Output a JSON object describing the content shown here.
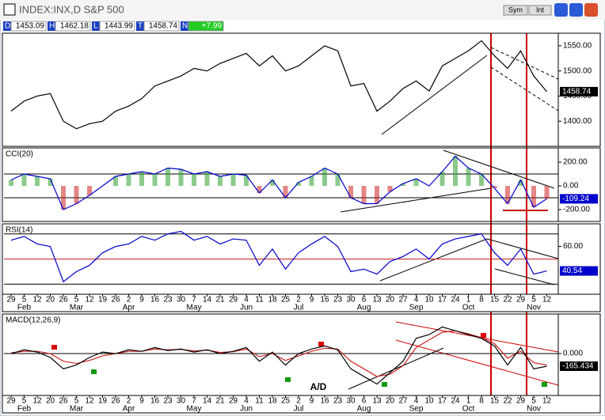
{
  "window": {
    "title": "INDEX:INX,D S&P 500",
    "buttons": [
      "Sym",
      "Int"
    ],
    "fields": [
      {
        "label": "D",
        "value": "1453.09"
      },
      {
        "label": "H",
        "value": "1462.18"
      },
      {
        "label": "L",
        "value": "1443.99"
      },
      {
        "label": "T",
        "value": "1458.74"
      },
      {
        "label": "N",
        "value": "+7.99"
      }
    ]
  },
  "chart_data": [
    {
      "type": "line",
      "ylim": [
        1350,
        1575
      ],
      "last_color": "#000000",
      "yticks": [
        {
          "value": 1550,
          "label": "1550.00"
        },
        {
          "value": 1500,
          "label": "1500.00"
        },
        {
          "value": 1450,
          "label": "1450.00"
        },
        {
          "value": 1400,
          "label": "1400.00"
        }
      ],
      "series": [
        {
          "name": "S&P 500",
          "color": "#000000",
          "values": [
            1420,
            1440,
            1450,
            1455,
            1400,
            1385,
            1395,
            1400,
            1420,
            1430,
            1445,
            1470,
            1480,
            1490,
            1505,
            1500,
            1515,
            1525,
            1535,
            1510,
            1530,
            1500,
            1510,
            1530,
            1550,
            1540,
            1470,
            1475,
            1420,
            1440,
            1465,
            1480,
            1460,
            1510,
            1525,
            1540,
            1560,
            1530,
            1505,
            1540,
            1490,
            1458.74
          ]
        }
      ]
    },
    {
      "type": "bar_line",
      "title": "CCI(20)",
      "ylim": [
        -300,
        320
      ],
      "last_color": "#0000cc",
      "yticks": [
        {
          "value": 200,
          "label": "200.00"
        },
        {
          "value": 0,
          "label": "0.00"
        },
        {
          "value": -200,
          "label": "-200.00"
        }
      ],
      "hlines": [
        100,
        -100
      ],
      "hline_colors": [
        "#000000",
        "#000000"
      ],
      "up_color": "#2e9e2e",
      "down_color": "#cc2222",
      "series": [
        {
          "name": "CCI",
          "color": "#0000cc",
          "values": [
            50,
            100,
            80,
            60,
            -200,
            -150,
            -80,
            0,
            80,
            100,
            120,
            100,
            150,
            140,
            100,
            120,
            80,
            100,
            90,
            -60,
            50,
            -100,
            30,
            80,
            150,
            100,
            -100,
            -150,
            -150,
            -50,
            20,
            60,
            0,
            120,
            250,
            150,
            100,
            -20,
            -150,
            50,
            -180,
            -109.24
          ]
        }
      ]
    },
    {
      "type": "line",
      "title": "RSI(14)",
      "ylim": [
        22,
        78
      ],
      "last_color": "#0000cc",
      "yticks": [
        {
          "value": 60,
          "label": "60.00"
        }
      ],
      "hlines": [
        70,
        50,
        30
      ],
      "hline_colors": [
        "#000000",
        "#cc2222",
        "#000000"
      ],
      "categories": [
        "29",
        "5",
        "12",
        "20",
        "26",
        "5",
        "12",
        "19",
        "26",
        "2",
        "9",
        "16",
        "23",
        "30",
        "7",
        "14",
        "21",
        "29",
        "4",
        "11",
        "18",
        "25",
        "2",
        "9",
        "16",
        "23",
        "30",
        "6",
        "13",
        "20",
        "27",
        "4",
        "10",
        "17",
        "24",
        "1",
        "8",
        "15",
        "22",
        "29",
        "5",
        "12"
      ],
      "months": [
        null,
        "Feb",
        null,
        null,
        null,
        "Mar",
        null,
        null,
        null,
        "Apr",
        null,
        null,
        null,
        null,
        "May",
        null,
        null,
        null,
        "Jun",
        null,
        null,
        null,
        "Jul",
        null,
        null,
        null,
        null,
        "Aug",
        null,
        null,
        null,
        "Sep",
        null,
        null,
        null,
        "Oct",
        null,
        null,
        null,
        null,
        "Nov",
        null
      ],
      "series": [
        {
          "name": "RSI",
          "color": "#0000cc",
          "values": [
            65,
            68,
            62,
            60,
            32,
            40,
            45,
            55,
            60,
            62,
            68,
            65,
            70,
            72,
            65,
            68,
            62,
            66,
            65,
            45,
            58,
            42,
            55,
            62,
            68,
            60,
            40,
            42,
            38,
            48,
            52,
            58,
            50,
            62,
            66,
            68,
            70,
            55,
            45,
            58,
            38,
            40.54
          ]
        }
      ]
    },
    {
      "type": "line",
      "title": "MACD(12,26,9)",
      "annotation": "A/D",
      "ylim": [
        -550,
        520
      ],
      "last_color": "#000000",
      "yticks": [
        {
          "value": 0,
          "label": "0.000"
        }
      ],
      "hlines": [
        0
      ],
      "hline_colors": [
        "#000000"
      ],
      "categories": [
        "29",
        "5",
        "12",
        "20",
        "26",
        "5",
        "12",
        "19",
        "26",
        "2",
        "9",
        "16",
        "23",
        "30",
        "7",
        "14",
        "21",
        "29",
        "4",
        "11",
        "18",
        "25",
        "2",
        "9",
        "16",
        "23",
        "30",
        "6",
        "13",
        "20",
        "27",
        "4",
        "10",
        "17",
        "24",
        "1",
        "8",
        "15",
        "22",
        "29",
        "5",
        "12"
      ],
      "months": [
        null,
        "Feb",
        null,
        null,
        null,
        "Mar",
        null,
        null,
        null,
        "Apr",
        null,
        null,
        null,
        null,
        "May",
        null,
        null,
        null,
        "Jun",
        null,
        null,
        null,
        "Jul",
        null,
        null,
        null,
        null,
        "Aug",
        null,
        null,
        null,
        "Sep",
        null,
        null,
        null,
        "Oct",
        null,
        null,
        null,
        null,
        "Nov",
        null
      ],
      "series": [
        {
          "name": "Signal",
          "color": "#cc2222",
          "values": [
            10,
            30,
            30,
            0,
            -100,
            -130,
            -90,
            -30,
            0,
            30,
            30,
            60,
            50,
            55,
            35,
            45,
            15,
            25,
            60,
            -40,
            0,
            -90,
            -30,
            30,
            70,
            60,
            -100,
            -200,
            -300,
            -270,
            -160,
            80,
            180,
            280,
            300,
            260,
            210,
            130,
            -60,
            30,
            -120,
            -150
          ]
        },
        {
          "name": "MACD",
          "color": "#000000",
          "values": [
            0,
            50,
            20,
            -50,
            -200,
            -150,
            -50,
            20,
            0,
            50,
            30,
            80,
            40,
            60,
            20,
            50,
            0,
            30,
            80,
            -100,
            20,
            -150,
            0,
            60,
            100,
            50,
            -200,
            -300,
            -400,
            -250,
            -100,
            200,
            250,
            350,
            300,
            250,
            200,
            100,
            -150,
            80,
            -200,
            -165.434
          ]
        }
      ]
    }
  ]
}
